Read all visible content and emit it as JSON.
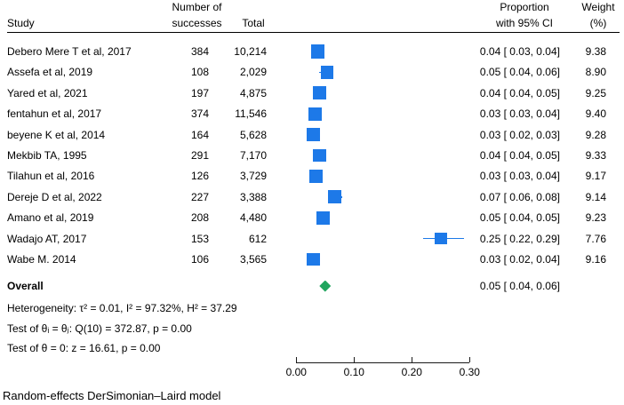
{
  "header": {
    "study": "Study",
    "successes_line1": "Number of",
    "successes_line2": "successes",
    "total": "Total",
    "proportion_line1": "Proportion",
    "proportion_line2": "with 95% CI",
    "weight_line1": "Weight",
    "weight_line2": "(%)"
  },
  "chart_data": {
    "type": "forest",
    "x_axis": {
      "range": [
        0.0,
        0.3
      ],
      "ticks": [
        0.0,
        0.1,
        0.2,
        0.3
      ],
      "tick_labels": [
        "0.00",
        "0.10",
        "0.20",
        "0.30"
      ]
    },
    "studies": [
      {
        "study": "Debero Mere T et al, 2017",
        "successes": "384",
        "total": "10,214",
        "proportion": 0.0376,
        "ci_lo": 0.03,
        "ci_hi": 0.04,
        "ci_text": "0.04 [ 0.03,  0.04]",
        "weight": 9.38,
        "weight_text": "9.38"
      },
      {
        "study": "Assefa et al, 2019",
        "successes": "108",
        "total": "2,029",
        "proportion": 0.0532,
        "ci_lo": 0.04,
        "ci_hi": 0.06,
        "ci_text": "0.05 [ 0.04,  0.06]",
        "weight": 8.9,
        "weight_text": "8.90"
      },
      {
        "study": "Yared et al, 2021",
        "successes": "197",
        "total": "4,875",
        "proportion": 0.0404,
        "ci_lo": 0.04,
        "ci_hi": 0.05,
        "ci_text": "0.04 [ 0.04,  0.05]",
        "weight": 9.25,
        "weight_text": "9.25"
      },
      {
        "study": "fentahun et al, 2017",
        "successes": "374",
        "total": "11,546",
        "proportion": 0.0324,
        "ci_lo": 0.03,
        "ci_hi": 0.04,
        "ci_text": "0.03 [ 0.03,  0.04]",
        "weight": 9.4,
        "weight_text": "9.40"
      },
      {
        "study": "beyene K et al, 2014",
        "successes": "164",
        "total": "5,628",
        "proportion": 0.0291,
        "ci_lo": 0.02,
        "ci_hi": 0.03,
        "ci_text": "0.03 [ 0.02,  0.03]",
        "weight": 9.28,
        "weight_text": "9.28"
      },
      {
        "study": "Mekbib TA, 1995",
        "successes": "291",
        "total": "7,170",
        "proportion": 0.0406,
        "ci_lo": 0.04,
        "ci_hi": 0.05,
        "ci_text": "0.04 [ 0.04,  0.05]",
        "weight": 9.33,
        "weight_text": "9.33"
      },
      {
        "study": "Tilahun et al, 2016",
        "successes": "126",
        "total": "3,729",
        "proportion": 0.0338,
        "ci_lo": 0.03,
        "ci_hi": 0.04,
        "ci_text": "0.03 [ 0.03,  0.04]",
        "weight": 9.17,
        "weight_text": "9.17"
      },
      {
        "study": "Dereje D et al, 2022",
        "successes": "227",
        "total": "3,388",
        "proportion": 0.067,
        "ci_lo": 0.06,
        "ci_hi": 0.08,
        "ci_text": "0.07 [ 0.06,  0.08]",
        "weight": 9.14,
        "weight_text": "9.14"
      },
      {
        "study": "Amano et al, 2019",
        "successes": "208",
        "total": "4,480",
        "proportion": 0.0464,
        "ci_lo": 0.04,
        "ci_hi": 0.05,
        "ci_text": "0.05 [ 0.04,  0.05]",
        "weight": 9.23,
        "weight_text": "9.23"
      },
      {
        "study": "Wadajo AT, 2017",
        "successes": "153",
        "total": "612",
        "proportion": 0.25,
        "ci_lo": 0.22,
        "ci_hi": 0.29,
        "ci_text": "0.25 [ 0.22,  0.29]",
        "weight": 7.76,
        "weight_text": "7.76"
      },
      {
        "study": "Wabe M. 2014",
        "successes": "106",
        "total": "3,565",
        "proportion": 0.0297,
        "ci_lo": 0.02,
        "ci_hi": 0.04,
        "ci_text": "0.03 [ 0.02,  0.04]",
        "weight": 9.16,
        "weight_text": "9.16"
      }
    ],
    "overall": {
      "label": "Overall",
      "proportion": 0.052,
      "ci_lo": 0.04,
      "ci_hi": 0.06,
      "ci_text": "0.05 [ 0.04,  0.06]"
    },
    "notes": [
      "Heterogeneity: τ² = 0.01, I² = 97.32%, H² = 37.29",
      "Test of θᵢ = θⱼ: Q(10) = 372.87, p = 0.00",
      "Test of θ = 0: z = 16.61, p = 0.00"
    ],
    "caption": "Random-effects DerSimonian–Laird model",
    "colors": {
      "marker": "#1d79e8",
      "diamond": "#21a55e",
      "axis": "#1a1a1a",
      "text": "#000000"
    }
  }
}
